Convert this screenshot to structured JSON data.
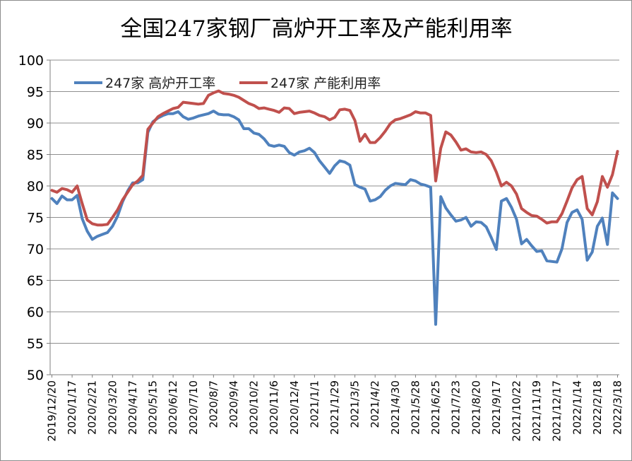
{
  "chart_data": {
    "type": "line",
    "title": "全国247家钢厂高炉开工率及产能利用率",
    "xlabel": "",
    "ylabel": "",
    "ylim": [
      50,
      100
    ],
    "yticks": [
      50,
      55,
      60,
      65,
      70,
      75,
      80,
      85,
      90,
      95,
      100
    ],
    "grid": "horizontal",
    "legend_position": "top-left",
    "x_tick_labels": [
      "2019/12/20",
      "2020/1/17",
      "2020/2/21",
      "2020/3/20",
      "2020/4/17",
      "2020/5/15",
      "2020/6/12",
      "2020/7/10",
      "2020/8/7",
      "2020/9/4",
      "2020/10/2",
      "2020/11/6",
      "2020/12/4",
      "2021/1/1",
      "2021/1/29",
      "2021/3/5",
      "2021/4/2",
      "2021/4/30",
      "2021/5/28",
      "2021/6/25",
      "2021/7/23",
      "2021/8/20",
      "2021/9/17",
      "2021/10/22",
      "2021/11/19",
      "2021/12/17",
      "2022/1/14",
      "2022/2/18",
      "2022/3/18"
    ],
    "series": [
      {
        "name": "247家 高炉开工率",
        "color": "#4f81bd",
        "points": [
          [
            0,
            78.0
          ],
          [
            1,
            77.2
          ],
          [
            2,
            78.4
          ],
          [
            3,
            77.8
          ],
          [
            4,
            77.8
          ],
          [
            5,
            78.5
          ],
          [
            6,
            74.8
          ],
          [
            7,
            72.8
          ],
          [
            8,
            71.5
          ],
          [
            9,
            72.0
          ],
          [
            10,
            72.3
          ],
          [
            11,
            72.6
          ],
          [
            12,
            73.6
          ],
          [
            13,
            75.2
          ],
          [
            14,
            77.5
          ],
          [
            15,
            79.2
          ],
          [
            16,
            80.5
          ],
          [
            17,
            80.5
          ],
          [
            18,
            81.0
          ],
          [
            19,
            88.5
          ],
          [
            20,
            90.2
          ],
          [
            21,
            90.8
          ],
          [
            22,
            91.2
          ],
          [
            23,
            91.5
          ],
          [
            24,
            91.5
          ],
          [
            25,
            91.8
          ],
          [
            26,
            91.0
          ],
          [
            27,
            90.6
          ],
          [
            28,
            90.8
          ],
          [
            29,
            91.1
          ],
          [
            30,
            91.3
          ],
          [
            31,
            91.5
          ],
          [
            32,
            91.9
          ],
          [
            33,
            91.4
          ],
          [
            34,
            91.3
          ],
          [
            35,
            91.3
          ],
          [
            36,
            91.0
          ],
          [
            37,
            90.5
          ],
          [
            38,
            89.1
          ],
          [
            39,
            89.1
          ],
          [
            40,
            88.4
          ],
          [
            41,
            88.2
          ],
          [
            42,
            87.5
          ],
          [
            43,
            86.5
          ],
          [
            44,
            86.3
          ],
          [
            45,
            86.5
          ],
          [
            46,
            86.3
          ],
          [
            47,
            85.3
          ],
          [
            48,
            84.9
          ],
          [
            49,
            85.4
          ],
          [
            50,
            85.6
          ],
          [
            51,
            86.0
          ],
          [
            52,
            85.3
          ],
          [
            53,
            84.0
          ],
          [
            54,
            83.0
          ],
          [
            55,
            82.0
          ],
          [
            56,
            83.2
          ],
          [
            57,
            84.0
          ],
          [
            58,
            83.8
          ],
          [
            59,
            83.3
          ],
          [
            60,
            80.2
          ],
          [
            61,
            79.8
          ],
          [
            62,
            79.5
          ],
          [
            63,
            77.6
          ],
          [
            64,
            77.8
          ],
          [
            65,
            78.3
          ],
          [
            66,
            79.3
          ],
          [
            67,
            80.0
          ],
          [
            68,
            80.4
          ],
          [
            69,
            80.3
          ],
          [
            70,
            80.2
          ],
          [
            71,
            81.0
          ],
          [
            72,
            80.8
          ],
          [
            73,
            80.3
          ],
          [
            74,
            80.1
          ],
          [
            75,
            79.8
          ],
          [
            76,
            58.0
          ],
          [
            77,
            78.3
          ],
          [
            78,
            76.5
          ],
          [
            79,
            75.4
          ],
          [
            80,
            74.4
          ],
          [
            81,
            74.6
          ],
          [
            82,
            75.0
          ],
          [
            83,
            73.6
          ],
          [
            84,
            74.3
          ],
          [
            85,
            74.2
          ],
          [
            86,
            73.5
          ],
          [
            87,
            71.8
          ],
          [
            88,
            69.9
          ],
          [
            89,
            77.6
          ],
          [
            90,
            78.0
          ],
          [
            91,
            76.6
          ],
          [
            92,
            74.7
          ],
          [
            93,
            70.8
          ],
          [
            94,
            71.5
          ],
          [
            95,
            70.5
          ],
          [
            96,
            69.6
          ],
          [
            97,
            69.7
          ],
          [
            98,
            68.1
          ],
          [
            99,
            68.0
          ],
          [
            100,
            67.9
          ],
          [
            101,
            70.0
          ],
          [
            102,
            74.2
          ],
          [
            103,
            75.8
          ],
          [
            104,
            76.2
          ],
          [
            105,
            74.7
          ],
          [
            106,
            68.2
          ],
          [
            107,
            69.5
          ],
          [
            108,
            73.6
          ],
          [
            109,
            74.9
          ],
          [
            110,
            70.7
          ],
          [
            111,
            78.9
          ],
          [
            112,
            78.0
          ]
        ]
      },
      {
        "name": "247家 产能利用率",
        "color": "#c0504d",
        "points": [
          [
            0,
            79.3
          ],
          [
            1,
            79.0
          ],
          [
            2,
            79.6
          ],
          [
            3,
            79.4
          ],
          [
            4,
            79.0
          ],
          [
            5,
            80.0
          ],
          [
            6,
            77.2
          ],
          [
            7,
            74.6
          ],
          [
            8,
            74.0
          ],
          [
            9,
            73.8
          ],
          [
            10,
            73.8
          ],
          [
            11,
            73.9
          ],
          [
            12,
            75.0
          ],
          [
            13,
            76.2
          ],
          [
            14,
            77.8
          ],
          [
            15,
            79.0
          ],
          [
            16,
            80.2
          ],
          [
            17,
            80.8
          ],
          [
            18,
            81.7
          ],
          [
            19,
            89.0
          ],
          [
            20,
            90.0
          ],
          [
            21,
            91.0
          ],
          [
            22,
            91.5
          ],
          [
            23,
            91.9
          ],
          [
            24,
            92.3
          ],
          [
            25,
            92.5
          ],
          [
            26,
            93.3
          ],
          [
            27,
            93.2
          ],
          [
            28,
            93.1
          ],
          [
            29,
            93.0
          ],
          [
            30,
            93.1
          ],
          [
            31,
            94.4
          ],
          [
            32,
            94.8
          ],
          [
            33,
            95.1
          ],
          [
            34,
            94.7
          ],
          [
            35,
            94.6
          ],
          [
            36,
            94.4
          ],
          [
            37,
            94.1
          ],
          [
            38,
            93.6
          ],
          [
            39,
            93.1
          ],
          [
            40,
            92.8
          ],
          [
            41,
            92.3
          ],
          [
            42,
            92.4
          ],
          [
            43,
            92.2
          ],
          [
            44,
            92.0
          ],
          [
            45,
            91.7
          ],
          [
            46,
            92.4
          ],
          [
            47,
            92.3
          ],
          [
            48,
            91.5
          ],
          [
            49,
            91.7
          ],
          [
            50,
            91.8
          ],
          [
            51,
            91.9
          ],
          [
            52,
            91.6
          ],
          [
            53,
            91.2
          ],
          [
            54,
            91.0
          ],
          [
            55,
            90.5
          ],
          [
            56,
            90.9
          ],
          [
            57,
            92.1
          ],
          [
            58,
            92.2
          ],
          [
            59,
            92.0
          ],
          [
            60,
            90.4
          ],
          [
            61,
            87.1
          ],
          [
            62,
            88.2
          ],
          [
            63,
            86.9
          ],
          [
            64,
            86.9
          ],
          [
            65,
            87.7
          ],
          [
            66,
            88.7
          ],
          [
            67,
            89.9
          ],
          [
            68,
            90.5
          ],
          [
            69,
            90.7
          ],
          [
            70,
            91.0
          ],
          [
            71,
            91.3
          ],
          [
            72,
            91.8
          ],
          [
            73,
            91.6
          ],
          [
            74,
            91.6
          ],
          [
            75,
            91.2
          ],
          [
            76,
            80.8
          ],
          [
            77,
            86.0
          ],
          [
            78,
            88.6
          ],
          [
            79,
            88.1
          ],
          [
            80,
            87.0
          ],
          [
            81,
            85.7
          ],
          [
            82,
            85.9
          ],
          [
            83,
            85.4
          ],
          [
            84,
            85.3
          ],
          [
            85,
            85.4
          ],
          [
            86,
            85.0
          ],
          [
            87,
            84.0
          ],
          [
            88,
            82.2
          ],
          [
            89,
            80.0
          ],
          [
            90,
            80.6
          ],
          [
            91,
            80.0
          ],
          [
            92,
            78.7
          ],
          [
            93,
            76.4
          ],
          [
            94,
            75.8
          ],
          [
            95,
            75.3
          ],
          [
            96,
            75.2
          ],
          [
            97,
            74.7
          ],
          [
            98,
            74.1
          ],
          [
            99,
            74.3
          ],
          [
            100,
            74.3
          ],
          [
            101,
            75.6
          ],
          [
            102,
            77.6
          ],
          [
            103,
            79.7
          ],
          [
            104,
            81.0
          ],
          [
            105,
            81.5
          ],
          [
            106,
            76.4
          ],
          [
            107,
            75.4
          ],
          [
            108,
            77.5
          ],
          [
            109,
            81.5
          ],
          [
            110,
            79.8
          ],
          [
            111,
            81.8
          ],
          [
            112,
            85.5
          ]
        ]
      }
    ]
  }
}
